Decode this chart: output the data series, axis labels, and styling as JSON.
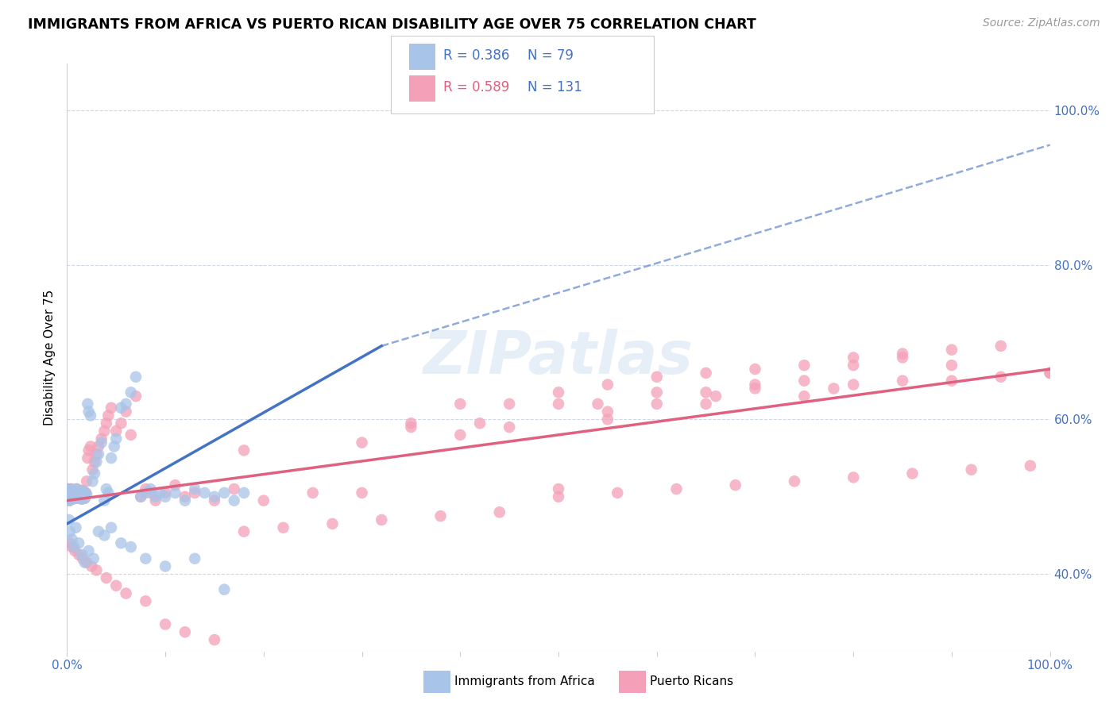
{
  "title": "IMMIGRANTS FROM AFRICA VS PUERTO RICAN DISABILITY AGE OVER 75 CORRELATION CHART",
  "source": "Source: ZipAtlas.com",
  "ylabel": "Disability Age Over 75",
  "legend_label_1": "Immigrants from Africa",
  "legend_label_2": "Puerto Ricans",
  "r1": 0.386,
  "n1": 79,
  "r2": 0.589,
  "n2": 131,
  "color_africa": "#a8c4e8",
  "color_pr": "#f4a0b8",
  "color_line_africa": "#4472c4",
  "color_line_pr": "#e06080",
  "color_ticks_blue": "#4472c4",
  "watermark": "ZIPatlas",
  "line1_x0": 0.0,
  "line1_y0": 0.465,
  "line1_x1": 0.32,
  "line1_y1": 0.695,
  "line2_x0": 0.0,
  "line2_y0": 0.495,
  "line2_x1": 1.0,
  "line2_y1": 0.665,
  "line1_dash_x0": 0.32,
  "line1_dash_y0": 0.695,
  "line1_dash_x1": 1.0,
  "line1_dash_y1": 0.955,
  "xlim": [
    0.0,
    1.0
  ],
  "ylim": [
    0.3,
    1.06
  ],
  "ytick_vals": [
    0.4,
    0.6,
    0.8,
    1.0
  ],
  "ytick_labels": [
    "40.0%",
    "60.0%",
    "80.0%",
    "100.0%"
  ],
  "africa_x": [
    0.0008,
    0.001,
    0.0012,
    0.0015,
    0.0018,
    0.002,
    0.0022,
    0.0025,
    0.003,
    0.0035,
    0.004,
    0.0045,
    0.005,
    0.0055,
    0.006,
    0.007,
    0.008,
    0.009,
    0.01,
    0.011,
    0.012,
    0.013,
    0.015,
    0.016,
    0.017,
    0.018,
    0.019,
    0.02,
    0.021,
    0.022,
    0.024,
    0.026,
    0.028,
    0.03,
    0.032,
    0.035,
    0.038,
    0.04,
    0.042,
    0.045,
    0.048,
    0.05,
    0.055,
    0.06,
    0.065,
    0.07,
    0.075,
    0.08,
    0.085,
    0.09,
    0.095,
    0.1,
    0.11,
    0.12,
    0.13,
    0.14,
    0.15,
    0.16,
    0.17,
    0.18,
    0.002,
    0.003,
    0.005,
    0.007,
    0.009,
    0.012,
    0.015,
    0.018,
    0.022,
    0.027,
    0.032,
    0.038,
    0.045,
    0.055,
    0.065,
    0.08,
    0.1,
    0.13,
    0.16
  ],
  "africa_y": [
    0.51,
    0.505,
    0.498,
    0.503,
    0.497,
    0.508,
    0.502,
    0.495,
    0.505,
    0.5,
    0.51,
    0.5,
    0.503,
    0.497,
    0.508,
    0.502,
    0.498,
    0.505,
    0.51,
    0.5,
    0.498,
    0.503,
    0.497,
    0.508,
    0.502,
    0.498,
    0.505,
    0.503,
    0.62,
    0.61,
    0.605,
    0.52,
    0.53,
    0.545,
    0.555,
    0.57,
    0.495,
    0.51,
    0.505,
    0.55,
    0.565,
    0.575,
    0.615,
    0.62,
    0.635,
    0.655,
    0.5,
    0.505,
    0.51,
    0.5,
    0.505,
    0.5,
    0.505,
    0.495,
    0.51,
    0.505,
    0.5,
    0.505,
    0.495,
    0.505,
    0.47,
    0.455,
    0.445,
    0.435,
    0.46,
    0.44,
    0.425,
    0.415,
    0.43,
    0.42,
    0.455,
    0.45,
    0.46,
    0.44,
    0.435,
    0.42,
    0.41,
    0.42,
    0.38
  ],
  "pr_x": [
    0.0008,
    0.001,
    0.0012,
    0.0015,
    0.0018,
    0.002,
    0.0022,
    0.0025,
    0.003,
    0.0035,
    0.004,
    0.0045,
    0.005,
    0.0055,
    0.006,
    0.007,
    0.008,
    0.009,
    0.01,
    0.011,
    0.012,
    0.013,
    0.015,
    0.016,
    0.017,
    0.018,
    0.019,
    0.02,
    0.021,
    0.022,
    0.024,
    0.026,
    0.028,
    0.03,
    0.032,
    0.035,
    0.038,
    0.04,
    0.042,
    0.045,
    0.05,
    0.055,
    0.06,
    0.065,
    0.07,
    0.075,
    0.08,
    0.085,
    0.09,
    0.1,
    0.11,
    0.12,
    0.13,
    0.15,
    0.17,
    0.2,
    0.25,
    0.3,
    0.35,
    0.4,
    0.45,
    0.5,
    0.55,
    0.6,
    0.65,
    0.7,
    0.75,
    0.8,
    0.85,
    0.9,
    0.95,
    1.0,
    0.003,
    0.005,
    0.008,
    0.012,
    0.016,
    0.02,
    0.025,
    0.03,
    0.04,
    0.05,
    0.06,
    0.08,
    0.1,
    0.12,
    0.15,
    0.18,
    0.22,
    0.27,
    0.32,
    0.38,
    0.44,
    0.5,
    0.56,
    0.62,
    0.68,
    0.74,
    0.8,
    0.86,
    0.92,
    0.98,
    0.18,
    0.3,
    0.42,
    0.54,
    0.66,
    0.78,
    0.9,
    1.0,
    0.35,
    0.5,
    0.65,
    0.8,
    0.95,
    0.5,
    0.75,
    0.85,
    0.6,
    0.4,
    0.55,
    0.7,
    0.45,
    0.65,
    0.8,
    0.55,
    0.7,
    0.9,
    0.6,
    0.75,
    0.85
  ],
  "pr_y": [
    0.51,
    0.505,
    0.498,
    0.503,
    0.497,
    0.508,
    0.502,
    0.495,
    0.505,
    0.5,
    0.51,
    0.5,
    0.503,
    0.497,
    0.508,
    0.502,
    0.498,
    0.505,
    0.51,
    0.5,
    0.498,
    0.503,
    0.497,
    0.508,
    0.502,
    0.498,
    0.505,
    0.52,
    0.55,
    0.56,
    0.565,
    0.535,
    0.545,
    0.555,
    0.565,
    0.575,
    0.585,
    0.595,
    0.605,
    0.615,
    0.585,
    0.595,
    0.61,
    0.58,
    0.63,
    0.5,
    0.51,
    0.505,
    0.495,
    0.505,
    0.515,
    0.5,
    0.505,
    0.495,
    0.51,
    0.495,
    0.505,
    0.505,
    0.59,
    0.62,
    0.62,
    0.635,
    0.645,
    0.655,
    0.66,
    0.665,
    0.67,
    0.68,
    0.685,
    0.69,
    0.695,
    0.66,
    0.44,
    0.435,
    0.43,
    0.425,
    0.42,
    0.415,
    0.41,
    0.405,
    0.395,
    0.385,
    0.375,
    0.365,
    0.335,
    0.325,
    0.315,
    0.455,
    0.46,
    0.465,
    0.47,
    0.475,
    0.48,
    0.5,
    0.505,
    0.51,
    0.515,
    0.52,
    0.525,
    0.53,
    0.535,
    0.54,
    0.56,
    0.57,
    0.595,
    0.62,
    0.63,
    0.64,
    0.65,
    0.66,
    0.595,
    0.62,
    0.635,
    0.645,
    0.655,
    0.51,
    0.63,
    0.65,
    0.635,
    0.58,
    0.61,
    0.64,
    0.59,
    0.62,
    0.67,
    0.6,
    0.645,
    0.67,
    0.62,
    0.65,
    0.68
  ]
}
